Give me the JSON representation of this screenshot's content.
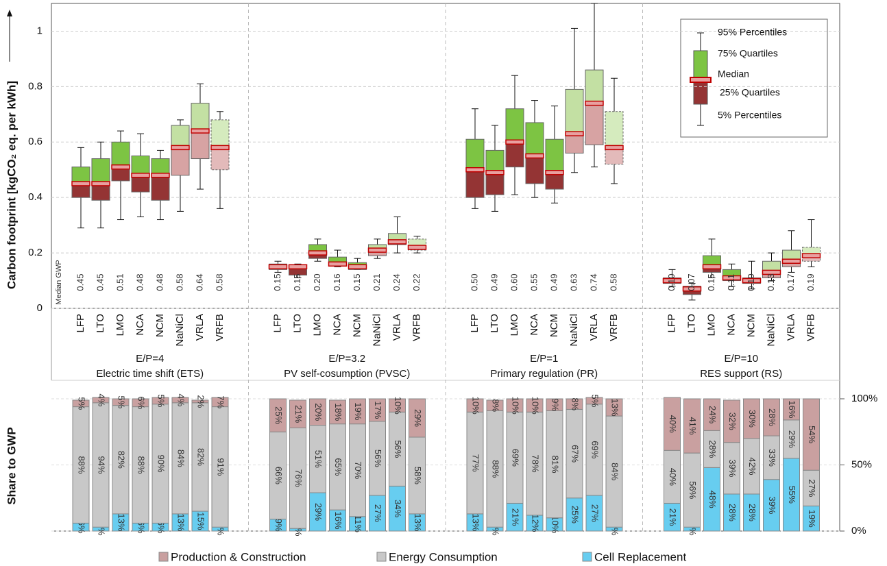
{
  "chart_data": [
    {
      "type": "box",
      "y_label": "Carbon footprint [kgCO₂ eq. per kWh]",
      "median_label_title": "Median GWP",
      "ylim": [
        0,
        1.1
      ],
      "yticks": [
        0,
        0.2,
        0.4,
        0.6,
        0.8,
        1
      ],
      "grid": true,
      "upper_colors": [
        "#7dc443",
        "#7dc443",
        "#7dc443",
        "#7dc443",
        "#7dc443",
        "#c3e0a3",
        "#c3e0a3",
        "#d5ebbe"
      ],
      "lower_colors": [
        "#943434",
        "#943434",
        "#943434",
        "#943434",
        "#943434",
        "#d7a3a3",
        "#d7a3a3",
        "#e3baba"
      ],
      "median_color": "#c00000",
      "legend": [
        "95% Percentiles",
        "75% Quartiles",
        "Median",
        "25% Quartiles",
        "5% Percentiles"
      ],
      "groups": [
        {
          "ratio": "E/P=4",
          "name": "Electric time shift (ETS)",
          "categories": [
            "LFP",
            "LTO",
            "LMO",
            "NCA",
            "NCM",
            "NaNiCl",
            "VRLA",
            "VRFB"
          ],
          "p5": [
            0.29,
            0.29,
            0.32,
            0.33,
            0.32,
            0.35,
            0.43,
            0.36
          ],
          "q25": [
            0.4,
            0.39,
            0.46,
            0.42,
            0.39,
            0.48,
            0.54,
            0.5
          ],
          "median": [
            0.45,
            0.45,
            0.51,
            0.48,
            0.48,
            0.58,
            0.64,
            0.58
          ],
          "q75": [
            0.51,
            0.54,
            0.6,
            0.55,
            0.54,
            0.66,
            0.74,
            0.68
          ],
          "p95": [
            0.58,
            0.6,
            0.64,
            0.63,
            0.57,
            0.68,
            0.81,
            0.71
          ],
          "median_labels": [
            "0.45",
            "0.45",
            "0.51",
            "0.48",
            "0.48",
            "0.58",
            "0.64",
            "0.58"
          ]
        },
        {
          "ratio": "E/P=3.2",
          "name": "PV self-cosumption (PVSC)",
          "categories": [
            "LFP",
            "LTO",
            "LMO",
            "NCA",
            "NCM",
            "NaNiCl",
            "VRLA",
            "VRFB"
          ],
          "p5": [
            0.13,
            0.11,
            0.17,
            0.15,
            0.14,
            0.18,
            0.2,
            0.2
          ],
          "q25": [
            0.14,
            0.12,
            0.18,
            0.155,
            0.14,
            0.19,
            0.23,
            0.21
          ],
          "median": [
            0.15,
            0.15,
            0.2,
            0.16,
            0.15,
            0.21,
            0.24,
            0.22
          ],
          "q75": [
            0.16,
            0.155,
            0.23,
            0.185,
            0.165,
            0.23,
            0.27,
            0.25
          ],
          "p95": [
            0.17,
            0.16,
            0.25,
            0.21,
            0.18,
            0.25,
            0.33,
            0.26
          ],
          "median_labels": [
            "0.15",
            "0.15",
            "0.20",
            "0.16",
            "0.15",
            "0.21",
            "0.24",
            "0.22"
          ]
        },
        {
          "ratio": "E/P=1",
          "name": "Primary regulation (PR)",
          "categories": [
            "LFP",
            "LTO",
            "LMO",
            "NCA",
            "NCM",
            "NaNiCl",
            "VRLA",
            "VRFB"
          ],
          "p5": [
            0.36,
            0.35,
            0.41,
            0.4,
            0.38,
            0.49,
            0.51,
            0.45
          ],
          "q25": [
            0.4,
            0.41,
            0.51,
            0.45,
            0.43,
            0.56,
            0.59,
            0.52
          ],
          "median": [
            0.5,
            0.49,
            0.6,
            0.55,
            0.49,
            0.63,
            0.74,
            0.58
          ],
          "q75": [
            0.61,
            0.57,
            0.72,
            0.67,
            0.61,
            0.79,
            0.86,
            0.71
          ],
          "p95": [
            0.72,
            0.66,
            0.84,
            0.75,
            0.73,
            1.01,
            1.1,
            0.83
          ],
          "median_labels": [
            "0.50",
            "0.49",
            "0.60",
            "0.55",
            "0.49",
            "0.63",
            "0.74",
            "0.58"
          ]
        },
        {
          "ratio": "E/P=10",
          "name": "RES support (RS)",
          "categories": [
            "LFP",
            "LTO",
            "LMO",
            "NCA",
            "NCM",
            "NaNiCl",
            "VRLA",
            "VRFB"
          ],
          "p5": [
            0.08,
            0.03,
            0.11,
            0.08,
            0.07,
            0.1,
            0.13,
            0.15
          ],
          "q25": [
            0.09,
            0.05,
            0.13,
            0.1,
            0.09,
            0.11,
            0.15,
            0.17
          ],
          "median": [
            0.1,
            0.07,
            0.15,
            0.11,
            0.1,
            0.13,
            0.17,
            0.19
          ],
          "q75": [
            0.11,
            0.08,
            0.19,
            0.14,
            0.11,
            0.17,
            0.21,
            0.22
          ],
          "p95": [
            0.14,
            0.09,
            0.25,
            0.16,
            0.17,
            0.2,
            0.28,
            0.32
          ],
          "median_labels": [
            "0.10",
            "0.07",
            "0.15",
            "0.11",
            "0.10",
            "0.13",
            "0.17",
            "0.19"
          ]
        }
      ]
    },
    {
      "type": "stacked_bar",
      "y_label": "Share to GWP",
      "ylim": [
        0,
        100
      ],
      "yticks": [
        {
          "value": 0,
          "label": "0%"
        },
        {
          "value": 50,
          "label": "50%"
        },
        {
          "value": 100,
          "label": "100%"
        }
      ],
      "grid": true,
      "series": [
        {
          "name": "Cell Replacement",
          "color": "#67cdf0",
          "values": [
            6,
            3,
            13,
            6,
            6,
            13,
            15,
            3,
            9,
            2,
            29,
            16,
            11,
            27,
            34,
            13,
            13,
            3,
            21,
            12,
            10,
            25,
            27,
            3,
            21,
            3,
            48,
            28,
            28,
            39,
            55,
            19
          ],
          "value_labels": [
            "6%",
            "3%",
            "13%",
            "6%",
            "6%",
            "13%",
            "15%",
            "3%",
            "9%",
            "2%",
            "29%",
            "16%",
            "11%",
            "27%",
            "34%",
            "13%",
            "13%",
            "3%",
            "21%",
            "12%",
            "10%",
            "25%",
            "27%",
            "3%",
            "21%",
            "3%",
            "48%",
            "28%",
            "28%",
            "39%",
            "55%",
            "19%"
          ]
        },
        {
          "name": "Energy Consumption",
          "color": "#c8c8c8",
          "values": [
            88,
            94,
            82,
            88,
            90,
            84,
            82,
            91,
            66,
            76,
            51,
            65,
            70,
            56,
            56,
            58,
            77,
            88,
            69,
            78,
            81,
            67,
            69,
            84,
            40,
            56,
            28,
            39,
            42,
            33,
            29,
            27
          ],
          "value_labels": [
            "88%",
            "94%",
            "82%",
            "88%",
            "90%",
            "84%",
            "82%",
            "91%",
            "66%",
            "76%",
            "51%",
            "65%",
            "70%",
            "56%",
            "56%",
            "58%",
            "77%",
            "88%",
            "69%",
            "78%",
            "81%",
            "67%",
            "69%",
            "84%",
            "40%",
            "56%",
            "28%",
            "39%",
            "42%",
            "33%",
            "29%",
            "27%"
          ]
        },
        {
          "name": "Production & Construction",
          "color": "#c9a0a0",
          "values": [
            5,
            4,
            5,
            6,
            5,
            4,
            2,
            7,
            25,
            21,
            20,
            18,
            19,
            17,
            10,
            29,
            10,
            8,
            10,
            10,
            9,
            8,
            5,
            13,
            40,
            41,
            24,
            32,
            30,
            28,
            16,
            54
          ],
          "value_labels": [
            "5%",
            "4%",
            "5%",
            "6%",
            "5%",
            "4%",
            "2%",
            "7%",
            "25%",
            "21%",
            "20%",
            "18%",
            "19%",
            "17%",
            "10%",
            "29%",
            "10%",
            "8%",
            "10%",
            "10%",
            "9%",
            "8%",
            "5%",
            "13%",
            "40%",
            "41%",
            "24%",
            "32%",
            "30%",
            "28%",
            "16%",
            "54%"
          ]
        }
      ]
    }
  ]
}
